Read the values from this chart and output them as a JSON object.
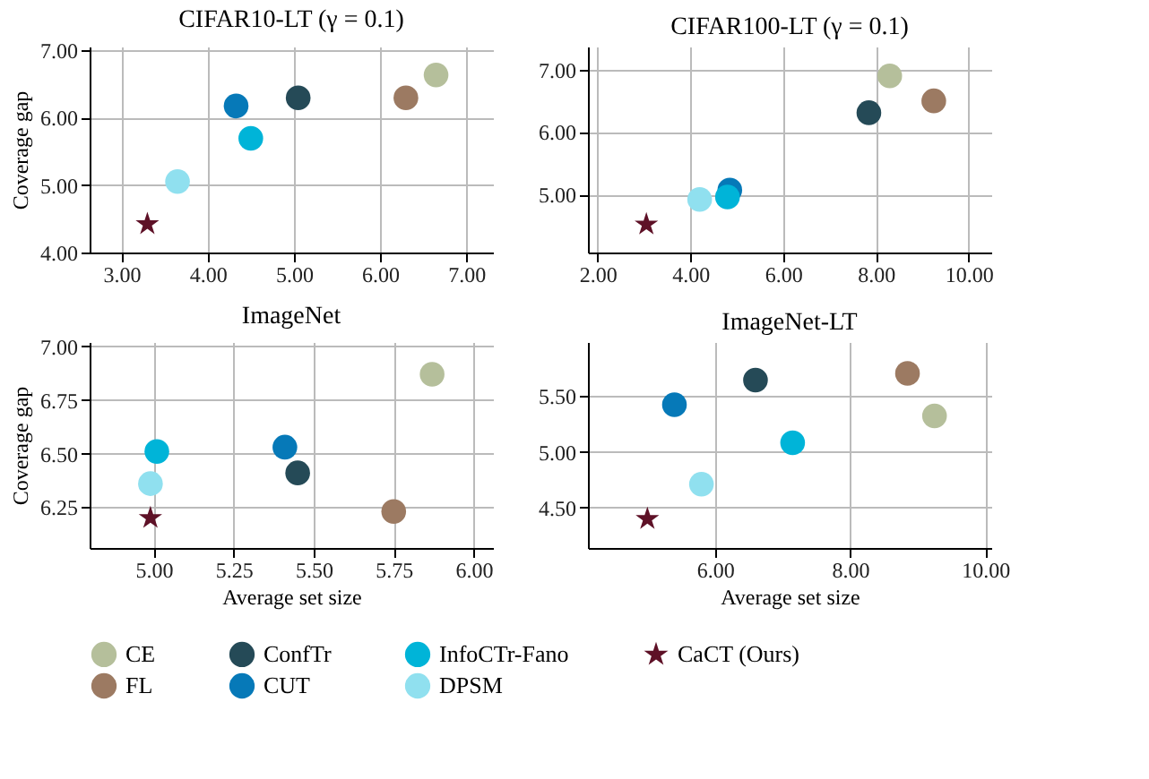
{
  "chart_data": [
    {
      "type": "scatter",
      "title": "CIFAR10-LT (γ = 0.1)",
      "ylabel": "Coverage gap",
      "xlim": [
        2.63,
        7.31
      ],
      "ylim": [
        4.0,
        7.05
      ],
      "xticks": [
        {
          "value": 3,
          "label": "3.00"
        },
        {
          "value": 4,
          "label": "4.00"
        },
        {
          "value": 5,
          "label": "5.00"
        },
        {
          "value": 6,
          "label": "6.00"
        },
        {
          "value": 7,
          "label": "7.00"
        }
      ],
      "yticks": [
        {
          "value": 4,
          "label": "4.00"
        },
        {
          "value": 5,
          "label": "5.00"
        },
        {
          "value": 6,
          "label": "6.00"
        },
        {
          "value": 7,
          "label": "7.00"
        }
      ],
      "grid": true,
      "legend": "bottom",
      "series": [
        {
          "name": "CE",
          "color": "#b5bf9b",
          "marker": "circle",
          "x": [
            6.65
          ],
          "values": [
            6.63
          ]
        },
        {
          "name": "FL",
          "color": "#9c7a62",
          "marker": "circle",
          "x": [
            6.3
          ],
          "values": [
            6.29
          ]
        },
        {
          "name": "ConfTr",
          "color": "#254a57",
          "marker": "circle",
          "x": [
            5.05
          ],
          "values": [
            6.29
          ]
        },
        {
          "name": "CUT",
          "color": "#0679b8",
          "marker": "circle",
          "x": [
            4.33
          ],
          "values": [
            6.17
          ]
        },
        {
          "name": "InfoCTr-Fano",
          "color": "#00b4d8",
          "marker": "circle",
          "x": [
            4.5
          ],
          "values": [
            5.69
          ]
        },
        {
          "name": "DPSM",
          "color": "#90e0ef",
          "marker": "circle",
          "x": [
            3.65
          ],
          "values": [
            5.05
          ]
        },
        {
          "name": "CaCT (Ours)",
          "color": "#5e1127",
          "marker": "star",
          "x": [
            3.3
          ],
          "values": [
            4.42
          ]
        }
      ]
    },
    {
      "type": "scatter",
      "title": "CIFAR100-LT (γ = 0.1)",
      "xlim": [
        1.79,
        10.49
      ],
      "ylim": [
        4.07,
        7.37
      ],
      "xticks": [
        {
          "value": 2,
          "label": "2.00"
        },
        {
          "value": 4,
          "label": "4.00"
        },
        {
          "value": 6,
          "label": "6.00"
        },
        {
          "value": 8,
          "label": "8.00"
        },
        {
          "value": 10,
          "label": "10.00"
        }
      ],
      "yticks": [
        {
          "value": 5,
          "label": "5.00"
        },
        {
          "value": 6,
          "label": "6.00"
        },
        {
          "value": 7,
          "label": "7.00"
        }
      ],
      "grid": true,
      "series": [
        {
          "name": "CE",
          "color": "#b5bf9b",
          "marker": "circle",
          "x": [
            8.3
          ],
          "values": [
            6.9
          ]
        },
        {
          "name": "FL",
          "color": "#9c7a62",
          "marker": "circle",
          "x": [
            9.25
          ],
          "values": [
            6.5
          ]
        },
        {
          "name": "ConfTr",
          "color": "#254a57",
          "marker": "circle",
          "x": [
            7.85
          ],
          "values": [
            6.31
          ]
        },
        {
          "name": "CUT",
          "color": "#0679b8",
          "marker": "circle",
          "x": [
            4.85
          ],
          "values": [
            5.07
          ]
        },
        {
          "name": "InfoCTr-Fano",
          "color": "#00b4d8",
          "marker": "circle",
          "x": [
            4.8
          ],
          "values": [
            4.96
          ]
        },
        {
          "name": "DPSM",
          "color": "#90e0ef",
          "marker": "circle",
          "x": [
            4.2
          ],
          "values": [
            4.92
          ]
        },
        {
          "name": "CaCT (Ours)",
          "color": "#5e1127",
          "marker": "star",
          "x": [
            3.05
          ],
          "values": [
            4.52
          ]
        }
      ]
    },
    {
      "type": "scatter",
      "title": "ImageNet",
      "xlabel": "Average set size",
      "ylabel": "Coverage gap",
      "xlim": [
        4.8,
        6.06
      ],
      "ylim": [
        6.06,
        7.02
      ],
      "xticks": [
        {
          "value": 5,
          "label": "5.00"
        },
        5.25,
        {
          "value": 5.5,
          "label": "5.50"
        },
        5.75,
        {
          "value": 6,
          "label": "6.00"
        }
      ],
      "yticks": [
        6.25,
        {
          "value": 6.5,
          "label": "6.50"
        },
        6.75,
        {
          "value": 7,
          "label": "7.00"
        }
      ],
      "grid": true,
      "series": [
        {
          "name": "CE",
          "color": "#b5bf9b",
          "marker": "circle",
          "x": [
            5.87
          ],
          "values": [
            6.87
          ]
        },
        {
          "name": "FL",
          "color": "#9c7a62",
          "marker": "circle",
          "x": [
            5.75
          ],
          "values": [
            6.23
          ]
        },
        {
          "name": "ConfTr",
          "color": "#254a57",
          "marker": "circle",
          "x": [
            5.45
          ],
          "values": [
            6.41
          ]
        },
        {
          "name": "CUT",
          "color": "#0679b8",
          "marker": "circle",
          "x": [
            5.41
          ],
          "values": [
            6.53
          ]
        },
        {
          "name": "InfoCTr-Fano",
          "color": "#00b4d8",
          "marker": "circle",
          "x": [
            5.01
          ],
          "values": [
            6.51
          ]
        },
        {
          "name": "DPSM",
          "color": "#90e0ef",
          "marker": "circle",
          "x": [
            4.99
          ],
          "values": [
            6.36
          ]
        },
        {
          "name": "CaCT (Ours)",
          "color": "#5e1127",
          "marker": "star",
          "x": [
            4.99
          ],
          "values": [
            6.2
          ]
        }
      ]
    },
    {
      "type": "scatter",
      "title": "ImageNet-LT",
      "xlabel": "Average set size",
      "xlim": [
        4.12,
        10.09
      ],
      "ylim": [
        4.14,
        5.98
      ],
      "xticks": [
        {
          "value": 6,
          "label": "6.00"
        },
        {
          "value": 8,
          "label": "8.00"
        },
        {
          "value": 10,
          "label": "10.00"
        }
      ],
      "yticks": [
        {
          "value": 4.5,
          "label": "4.50"
        },
        {
          "value": 5,
          "label": "5.00"
        },
        {
          "value": 5.5,
          "label": "5.50"
        }
      ],
      "grid": true,
      "series": [
        {
          "name": "CE",
          "color": "#b5bf9b",
          "marker": "circle",
          "x": [
            9.25
          ],
          "values": [
            5.32
          ]
        },
        {
          "name": "FL",
          "color": "#9c7a62",
          "marker": "circle",
          "x": [
            8.85
          ],
          "values": [
            5.7
          ]
        },
        {
          "name": "ConfTr",
          "color": "#254a57",
          "marker": "circle",
          "x": [
            6.6
          ],
          "values": [
            5.64
          ]
        },
        {
          "name": "CUT",
          "color": "#0679b8",
          "marker": "circle",
          "x": [
            5.4
          ],
          "values": [
            5.42
          ]
        },
        {
          "name": "InfoCTr-Fano",
          "color": "#00b4d8",
          "marker": "circle",
          "x": [
            7.15
          ],
          "values": [
            5.08
          ]
        },
        {
          "name": "DPSM",
          "color": "#90e0ef",
          "marker": "circle",
          "x": [
            5.8
          ],
          "values": [
            4.71
          ]
        },
        {
          "name": "CaCT (Ours)",
          "color": "#5e1127",
          "marker": "star",
          "x": [
            5.0
          ],
          "values": [
            4.4
          ]
        }
      ]
    }
  ]
}
